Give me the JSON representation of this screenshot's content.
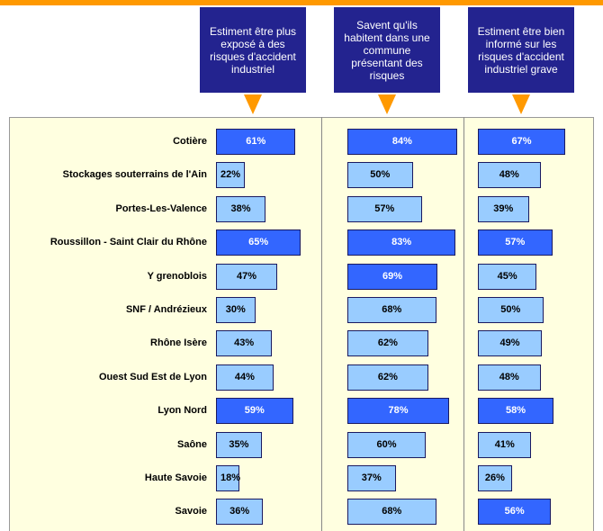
{
  "chart_data": {
    "type": "bar",
    "categories": [
      "Cotière",
      "Stockages souterrains de l'Ain",
      "Portes-Les-Valence",
      "Roussillon - Saint Clair du Rhône",
      "Y grenoblois",
      "SNF / Andrézieux",
      "Rhône Isère",
      "Ouest Sud Est de Lyon",
      "Lyon Nord",
      "Saône",
      "Haute Savoie",
      "Savoie"
    ],
    "series": [
      {
        "name": "Estiment être plus exposé à des risques d'accident industriel",
        "values": [
          61,
          22,
          38,
          65,
          47,
          30,
          43,
          44,
          59,
          35,
          18,
          36
        ],
        "value_labels": [
          "61%",
          "22%",
          "38%",
          "65%",
          "47%",
          "30%",
          "43%",
          "44%",
          "59%",
          "35%",
          "18%",
          "36%"
        ],
        "colors": [
          "#3366ff",
          "#99ccff",
          "#99ccff",
          "#3366ff",
          "#99ccff",
          "#99ccff",
          "#99ccff",
          "#99ccff",
          "#3366ff",
          "#99ccff",
          "#99ccff",
          "#99ccff"
        ]
      },
      {
        "name": "Savent qu'ils habitent dans une commune présentant des risques",
        "values": [
          84,
          50,
          57,
          83,
          69,
          68,
          62,
          62,
          78,
          60,
          37,
          68
        ],
        "value_labels": [
          "84%",
          "50%",
          "57%",
          "83%",
          "69%",
          "68%",
          "62%",
          "62%",
          "78%",
          "60%",
          "37%",
          "68%"
        ],
        "colors": [
          "#3366ff",
          "#99ccff",
          "#99ccff",
          "#3366ff",
          "#3366ff",
          "#99ccff",
          "#99ccff",
          "#99ccff",
          "#3366ff",
          "#99ccff",
          "#99ccff",
          "#99ccff"
        ]
      },
      {
        "name": "Estiment être bien informé sur les risques d'accident industriel grave",
        "values": [
          67,
          48,
          39,
          57,
          45,
          50,
          49,
          48,
          58,
          41,
          26,
          56
        ],
        "value_labels": [
          "67%",
          "48%",
          "39%",
          "57%",
          "45%",
          "50%",
          "49%",
          "48%",
          "58%",
          "41%",
          "26%",
          "56%"
        ],
        "colors": [
          "#3366ff",
          "#99ccff",
          "#99ccff",
          "#3366ff",
          "#99ccff",
          "#99ccff",
          "#99ccff",
          "#99ccff",
          "#3366ff",
          "#99ccff",
          "#99ccff",
          "#3366ff"
        ]
      }
    ]
  }
}
